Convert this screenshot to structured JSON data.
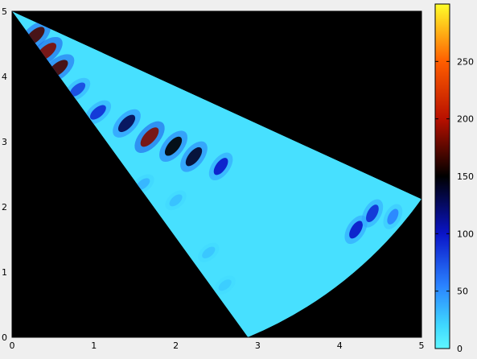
{
  "chart_data": {
    "type": "heatmap",
    "title": "",
    "xlabel": "",
    "ylabel": "",
    "xlim": [
      0,
      5
    ],
    "ylim": [
      0,
      5
    ],
    "x_ticks": [
      "0",
      "1",
      "2",
      "3",
      "4",
      "5"
    ],
    "y_ticks": [
      "0",
      "1",
      "2",
      "3",
      "4",
      "5"
    ],
    "background_color": "#000000",
    "sector": {
      "apex": [
        0,
        5
      ],
      "edge_point_a": [
        2.88,
        0
      ],
      "edge_point_b": [
        5,
        2.12
      ],
      "radius": 5.8,
      "outer_edge": "arc"
    },
    "base_value": 15,
    "colorbar": {
      "range": [
        0,
        300
      ],
      "ticks": [
        "0",
        "50",
        "100",
        "150",
        "200",
        "250"
      ],
      "colormap": "cyan-blue-black-red-yellow",
      "stops": [
        {
          "value": 0,
          "color": "#5ff7ff"
        },
        {
          "value": 20,
          "color": "#3fd8ff"
        },
        {
          "value": 55,
          "color": "#2a82ff"
        },
        {
          "value": 100,
          "color": "#0a14c8"
        },
        {
          "value": 150,
          "color": "#000000"
        },
        {
          "value": 200,
          "color": "#b81000"
        },
        {
          "value": 250,
          "color": "#ff5e00"
        },
        {
          "value": 300,
          "color": "#ffff2a"
        }
      ]
    },
    "hotspots": [
      {
        "x": 0.28,
        "y": 4.62,
        "value": 170
      },
      {
        "x": 0.42,
        "y": 4.38,
        "value": 185
      },
      {
        "x": 0.56,
        "y": 4.12,
        "value": 170
      },
      {
        "x": 0.8,
        "y": 3.8,
        "value": 80
      },
      {
        "x": 1.05,
        "y": 3.45,
        "value": 90
      },
      {
        "x": 1.4,
        "y": 3.28,
        "value": 130
      },
      {
        "x": 1.68,
        "y": 3.07,
        "value": 185
      },
      {
        "x": 1.97,
        "y": 2.93,
        "value": 150
      },
      {
        "x": 2.22,
        "y": 2.77,
        "value": 140
      },
      {
        "x": 2.55,
        "y": 2.62,
        "value": 100
      },
      {
        "x": 4.2,
        "y": 1.65,
        "value": 100
      },
      {
        "x": 4.4,
        "y": 1.9,
        "value": 90
      },
      {
        "x": 4.65,
        "y": 1.85,
        "value": 55
      },
      {
        "x": 1.6,
        "y": 2.35,
        "value": 35
      },
      {
        "x": 2.0,
        "y": 2.1,
        "value": 30
      },
      {
        "x": 1.5,
        "y": 1.6,
        "value": 30
      },
      {
        "x": 2.4,
        "y": 1.3,
        "value": 28
      },
      {
        "x": 2.6,
        "y": 0.8,
        "value": 25
      }
    ]
  }
}
